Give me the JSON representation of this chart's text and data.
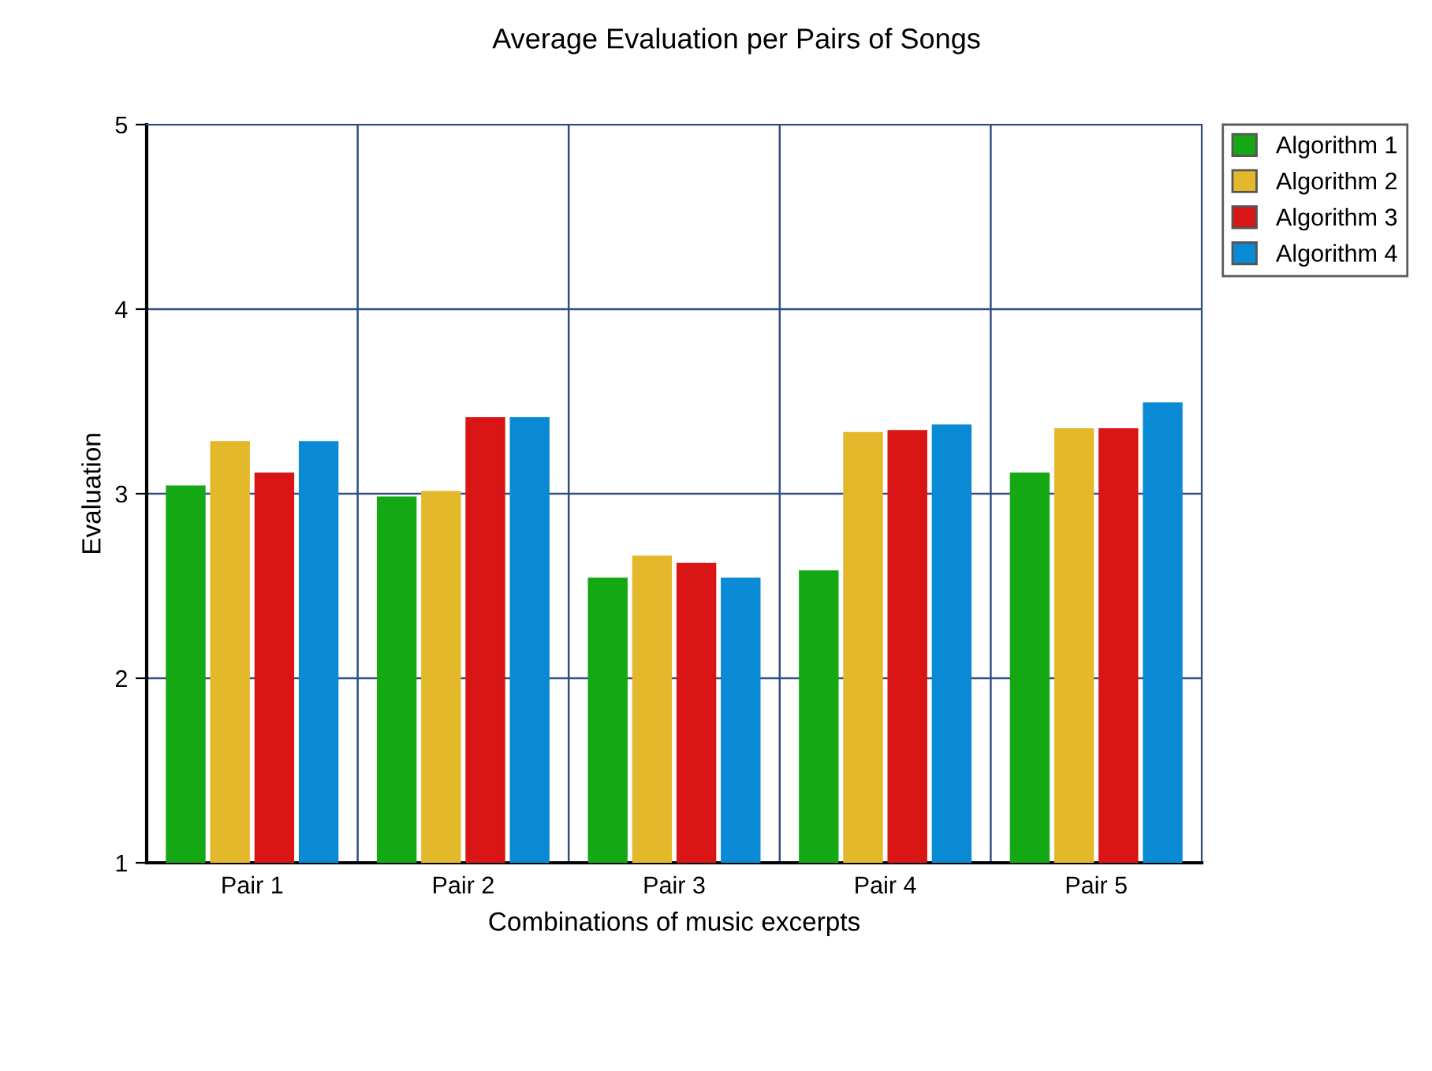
{
  "chart_data": {
    "type": "bar",
    "title": "Average Evaluation per Pairs of Songs",
    "xlabel": "Combinations of music excerpts",
    "ylabel": "Evaluation",
    "categories": [
      "Pair 1",
      "Pair 2",
      "Pair 3",
      "Pair 4",
      "Pair 5"
    ],
    "series": [
      {
        "name": "Algorithm 1",
        "color": "#14a814",
        "values": [
          3.04,
          2.98,
          2.54,
          2.58,
          3.11
        ]
      },
      {
        "name": "Algorithm 2",
        "color": "#e3b92b",
        "values": [
          3.28,
          3.01,
          2.66,
          3.33,
          3.35
        ]
      },
      {
        "name": "Algorithm 3",
        "color": "#d91515",
        "values": [
          3.11,
          3.41,
          2.62,
          3.34,
          3.35
        ]
      },
      {
        "name": "Algorithm 4",
        "color": "#0a8ad5",
        "values": [
          3.28,
          3.41,
          2.54,
          3.37,
          3.49
        ]
      }
    ],
    "ylim": [
      1,
      5
    ],
    "yticks": [
      1,
      2,
      3,
      4,
      5
    ],
    "grid": true,
    "legend": "top right"
  }
}
